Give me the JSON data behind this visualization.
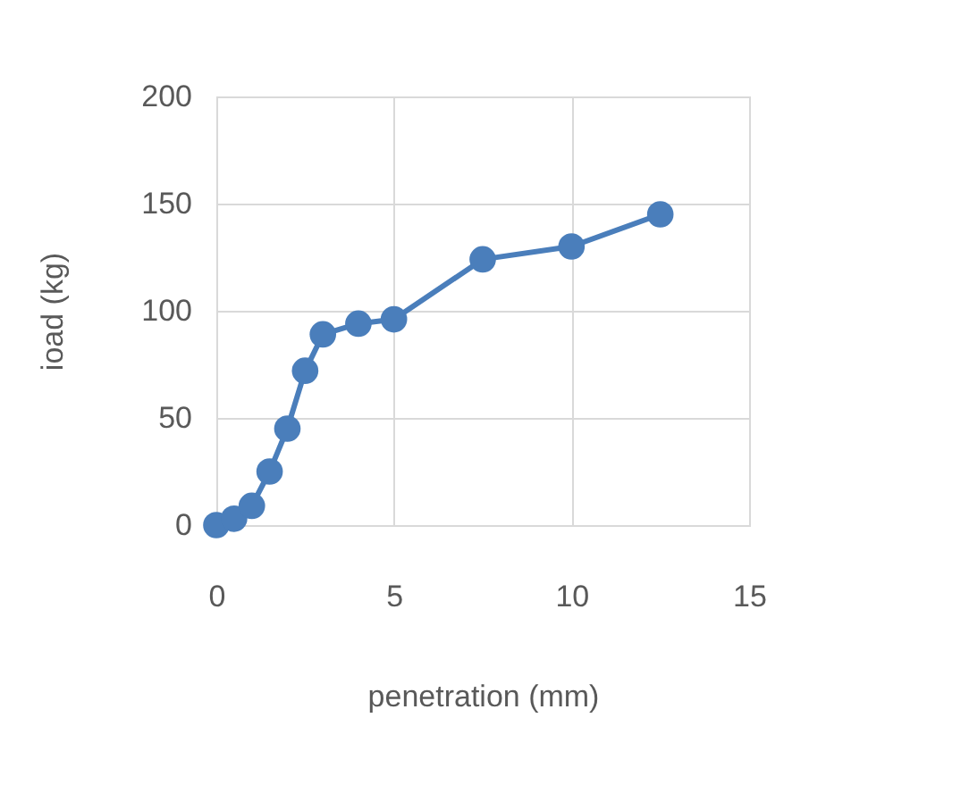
{
  "chart_data": {
    "type": "line",
    "xlabel": "penetration (mm)",
    "ylabel": "ioad (kg)",
    "series": [
      {
        "color": "#4a7ebb",
        "x": [
          0,
          0.5,
          1,
          1.5,
          2,
          2.5,
          3,
          4,
          5,
          7.5,
          10,
          12.5
        ],
        "values": [
          0,
          3,
          9,
          25,
          45,
          72,
          89,
          94,
          96,
          124,
          130,
          145
        ]
      }
    ],
    "xlim": [
      0,
      15
    ],
    "xticks": [
      0,
      5,
      10,
      15
    ],
    "ylim": [
      0,
      200
    ],
    "yticks": [
      0,
      50,
      100,
      150,
      200
    ],
    "grid": true,
    "marker": "circle",
    "line_style": "solid"
  }
}
